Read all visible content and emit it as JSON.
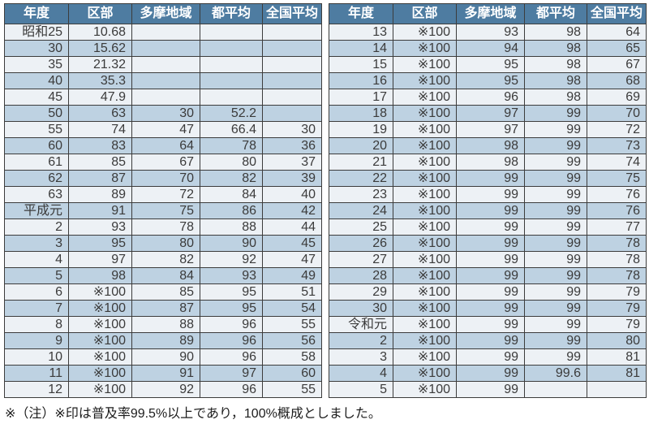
{
  "columns": [
    "年度",
    "区部",
    "多摩地域",
    "都平均",
    "全国平均"
  ],
  "tables": {
    "left": {
      "rows": [
        [
          "昭和25",
          "10.68",
          "",
          "",
          ""
        ],
        [
          "30",
          "15.62",
          "",
          "",
          ""
        ],
        [
          "35",
          "21.32",
          "",
          "",
          ""
        ],
        [
          "40",
          "35.3",
          "",
          "",
          ""
        ],
        [
          "45",
          "47.9",
          "",
          "",
          ""
        ],
        [
          "50",
          "63",
          "30",
          "52.2",
          ""
        ],
        [
          "55",
          "74",
          "47",
          "66.4",
          "30"
        ],
        [
          "60",
          "83",
          "64",
          "78",
          "36"
        ],
        [
          "61",
          "85",
          "67",
          "80",
          "37"
        ],
        [
          "62",
          "87",
          "70",
          "82",
          "39"
        ],
        [
          "63",
          "89",
          "72",
          "84",
          "40"
        ],
        [
          "平成元",
          "91",
          "75",
          "86",
          "42"
        ],
        [
          "2",
          "93",
          "78",
          "88",
          "44"
        ],
        [
          "3",
          "95",
          "80",
          "90",
          "45"
        ],
        [
          "4",
          "97",
          "82",
          "92",
          "47"
        ],
        [
          "5",
          "98",
          "84",
          "93",
          "49"
        ],
        [
          "6",
          "※100",
          "85",
          "95",
          "51"
        ],
        [
          "7",
          "※100",
          "87",
          "95",
          "54"
        ],
        [
          "8",
          "※100",
          "88",
          "96",
          "55"
        ],
        [
          "9",
          "※100",
          "89",
          "96",
          "56"
        ],
        [
          "10",
          "※100",
          "90",
          "96",
          "58"
        ],
        [
          "11",
          "※100",
          "91",
          "97",
          "60"
        ],
        [
          "12",
          "※100",
          "92",
          "96",
          "55"
        ]
      ]
    },
    "right": {
      "rows": [
        [
          "13",
          "※100",
          "93",
          "98",
          "64"
        ],
        [
          "14",
          "※100",
          "94",
          "98",
          "65"
        ],
        [
          "15",
          "※100",
          "95",
          "98",
          "67"
        ],
        [
          "16",
          "※100",
          "95",
          "98",
          "68"
        ],
        [
          "17",
          "※100",
          "96",
          "98",
          "69"
        ],
        [
          "18",
          "※100",
          "97",
          "99",
          "70"
        ],
        [
          "19",
          "※100",
          "97",
          "99",
          "72"
        ],
        [
          "20",
          "※100",
          "98",
          "99",
          "73"
        ],
        [
          "21",
          "※100",
          "98",
          "99",
          "74"
        ],
        [
          "22",
          "※100",
          "99",
          "99",
          "75"
        ],
        [
          "23",
          "※100",
          "99",
          "99",
          "76"
        ],
        [
          "24",
          "※100",
          "99",
          "99",
          "76"
        ],
        [
          "25",
          "※100",
          "99",
          "99",
          "77"
        ],
        [
          "26",
          "※100",
          "99",
          "99",
          "78"
        ],
        [
          "27",
          "※100",
          "99",
          "99",
          "78"
        ],
        [
          "28",
          "※100",
          "99",
          "99",
          "78"
        ],
        [
          "29",
          "※100",
          "99",
          "99",
          "79"
        ],
        [
          "30",
          "※100",
          "99",
          "99",
          "79"
        ],
        [
          "令和元",
          "※100",
          "99",
          "99",
          "79"
        ],
        [
          "2",
          "※100",
          "99",
          "99",
          "80"
        ],
        [
          "3",
          "※100",
          "99",
          "99",
          "81"
        ],
        [
          "4",
          "※100",
          "99",
          "99.6",
          "81"
        ],
        [
          "5",
          "※100",
          "99",
          "",
          ""
        ]
      ]
    }
  },
  "note": "※（注）※印は普及率99.5%以上であり，100%概成としました。",
  "colors": {
    "header_bg": "#4e7ca1",
    "header_text": "#ffffff",
    "row_light": "#edf1f5",
    "row_blue": "#bed2e2",
    "border": "#3c3c3c",
    "text": "#3b3b3b"
  }
}
